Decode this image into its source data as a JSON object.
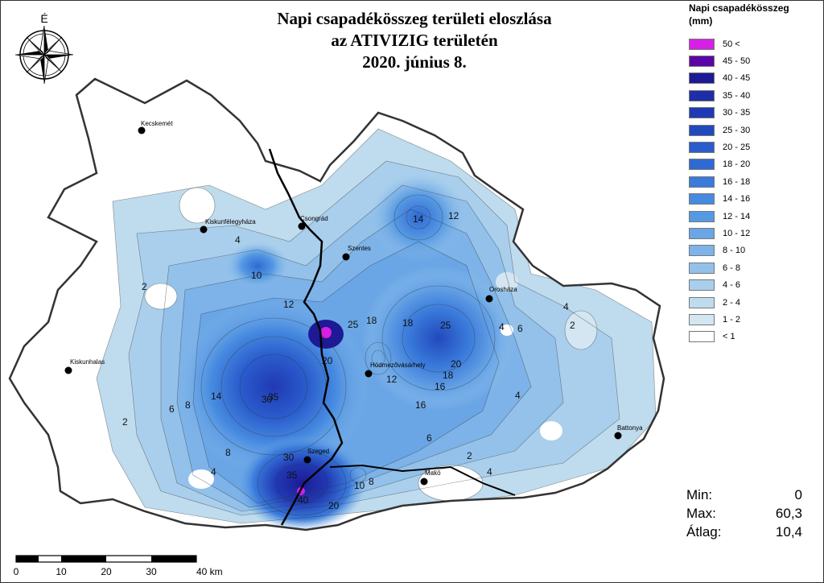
{
  "title": {
    "line1": "Napi csapadékösszeg területi eloszlása",
    "line2": "az ATIVIZIG területén",
    "line3": "2020. június 8."
  },
  "compass": {
    "north_label": "É",
    "icon": "compass-rose-icon"
  },
  "legend": {
    "title": "Napi csapadékösszeg",
    "unit": "(mm)",
    "classes": [
      {
        "label": "50 <",
        "color": "#d81fe6"
      },
      {
        "label": "45 - 50",
        "color": "#5b06a4"
      },
      {
        "label": "40 - 45",
        "color": "#1e1994"
      },
      {
        "label": "35 - 40",
        "color": "#1f2ea6"
      },
      {
        "label": "30 - 35",
        "color": "#2039b4"
      },
      {
        "label": "25 - 30",
        "color": "#2149bd"
      },
      {
        "label": "20 - 25",
        "color": "#2a5ccc"
      },
      {
        "label": "18 - 20",
        "color": "#2f6ad4"
      },
      {
        "label": "16 - 18",
        "color": "#3a7bdb"
      },
      {
        "label": "14 - 16",
        "color": "#478be0"
      },
      {
        "label": "12 - 14",
        "color": "#5699e3"
      },
      {
        "label": "10 - 12",
        "color": "#6aa6e6"
      },
      {
        "label": "8 - 10",
        "color": "#7db3e8"
      },
      {
        "label": "6 - 8",
        "color": "#93c1ea"
      },
      {
        "label": "4 - 6",
        "color": "#a9cfec"
      },
      {
        "label": "2 - 4",
        "color": "#bfdbee"
      },
      {
        "label": "1 - 2",
        "color": "#d4e6f1"
      },
      {
        "label": "< 1",
        "color": "#ffffff"
      }
    ]
  },
  "cities": [
    {
      "name": "Kecskemét"
    },
    {
      "name": "Kiskunfélegyháza"
    },
    {
      "name": "Csongrád"
    },
    {
      "name": "Szentes"
    },
    {
      "name": "Orosháza"
    },
    {
      "name": "Kiskunhalas"
    },
    {
      "name": "Hódmezővásárhely"
    },
    {
      "name": "Battonya"
    },
    {
      "name": "Szeged"
    },
    {
      "name": "Makó"
    }
  ],
  "contour_labels": [
    "2",
    "4",
    "6",
    "8",
    "10",
    "12",
    "14",
    "16",
    "18",
    "20",
    "25",
    "30",
    "35",
    "40"
  ],
  "stats": {
    "min_label": "Min:",
    "min_value": "0",
    "max_label": "Max:",
    "max_value": "60,3",
    "avg_label": "Átlag:",
    "avg_value": "10,4"
  },
  "scalebar": {
    "ticks": [
      "0",
      "10",
      "20",
      "30",
      "40 km"
    ]
  }
}
